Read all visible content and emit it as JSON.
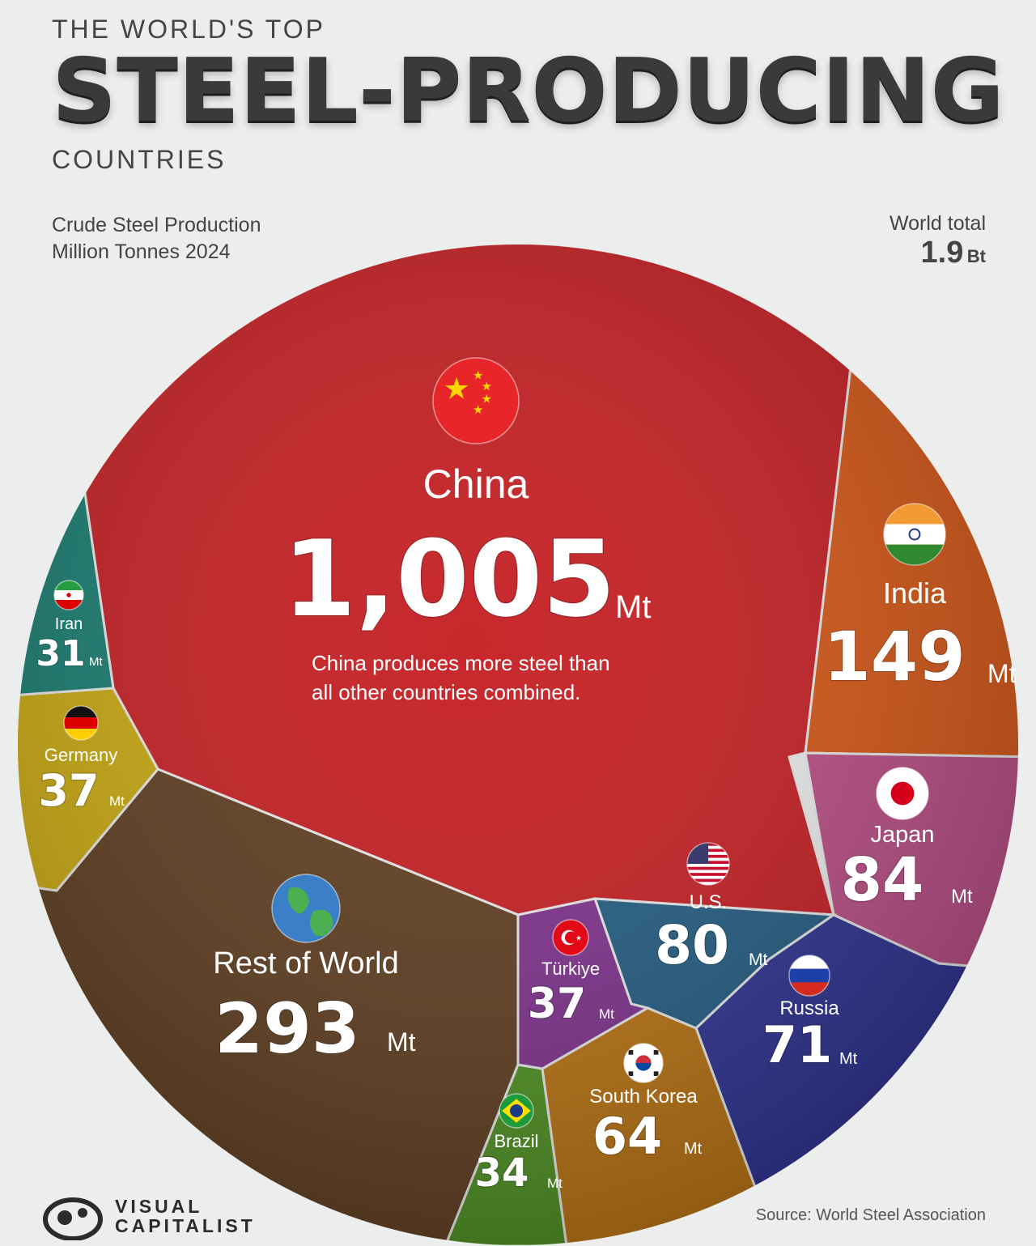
{
  "header": {
    "kicker": "THE WORLD'S TOP",
    "headline": "STEEL-PRODUCING",
    "sub": "COUNTRIES",
    "measure_line1": "Crude Steel Production",
    "measure_line2": "Million Tonnes 2024",
    "total_label": "World total",
    "total_value": "1.9",
    "total_unit": "Bt"
  },
  "chart_data": {
    "type": "voronoi-treemap",
    "title": "THE WORLD'S TOP STEEL-PRODUCING COUNTRIES",
    "subtitle": "Crude Steel Production Million Tonnes 2024",
    "unit": "Mt",
    "world_total": "1.9 Bt",
    "annotation": "China produces more steel than all other countries combined.",
    "categories": [
      "China",
      "India",
      "Japan",
      "U.S.",
      "Russia",
      "South Korea",
      "Brazil",
      "Türkiye",
      "Rest of World",
      "Germany",
      "Iran"
    ],
    "values": [
      1005,
      149,
      84,
      80,
      71,
      64,
      34,
      37,
      293,
      37,
      31
    ],
    "value_labels": [
      "1,005",
      "149",
      "84",
      "80",
      "71",
      "64",
      "34",
      "37",
      "293",
      "37",
      "31"
    ],
    "colors": [
      "#c41a1e",
      "#d65412",
      "#b94a84",
      "#1f5a80",
      "#2a2e8f",
      "#b8700e",
      "#4b8e1e",
      "#7c2d8a",
      "#5c3a1c",
      "#c9a80c",
      "#147a6e"
    ]
  },
  "footer": {
    "brand_line1": "VISUAL",
    "brand_line2": "CAPITALIST",
    "source": "Source: World Steel Association"
  },
  "icons": [
    "china-flag-icon",
    "india-flag-icon",
    "japan-flag-icon",
    "us-flag-icon",
    "russia-flag-icon",
    "south-korea-flag-icon",
    "brazil-flag-icon",
    "turkiye-flag-icon",
    "globe-icon",
    "germany-flag-icon",
    "iran-flag-icon"
  ]
}
